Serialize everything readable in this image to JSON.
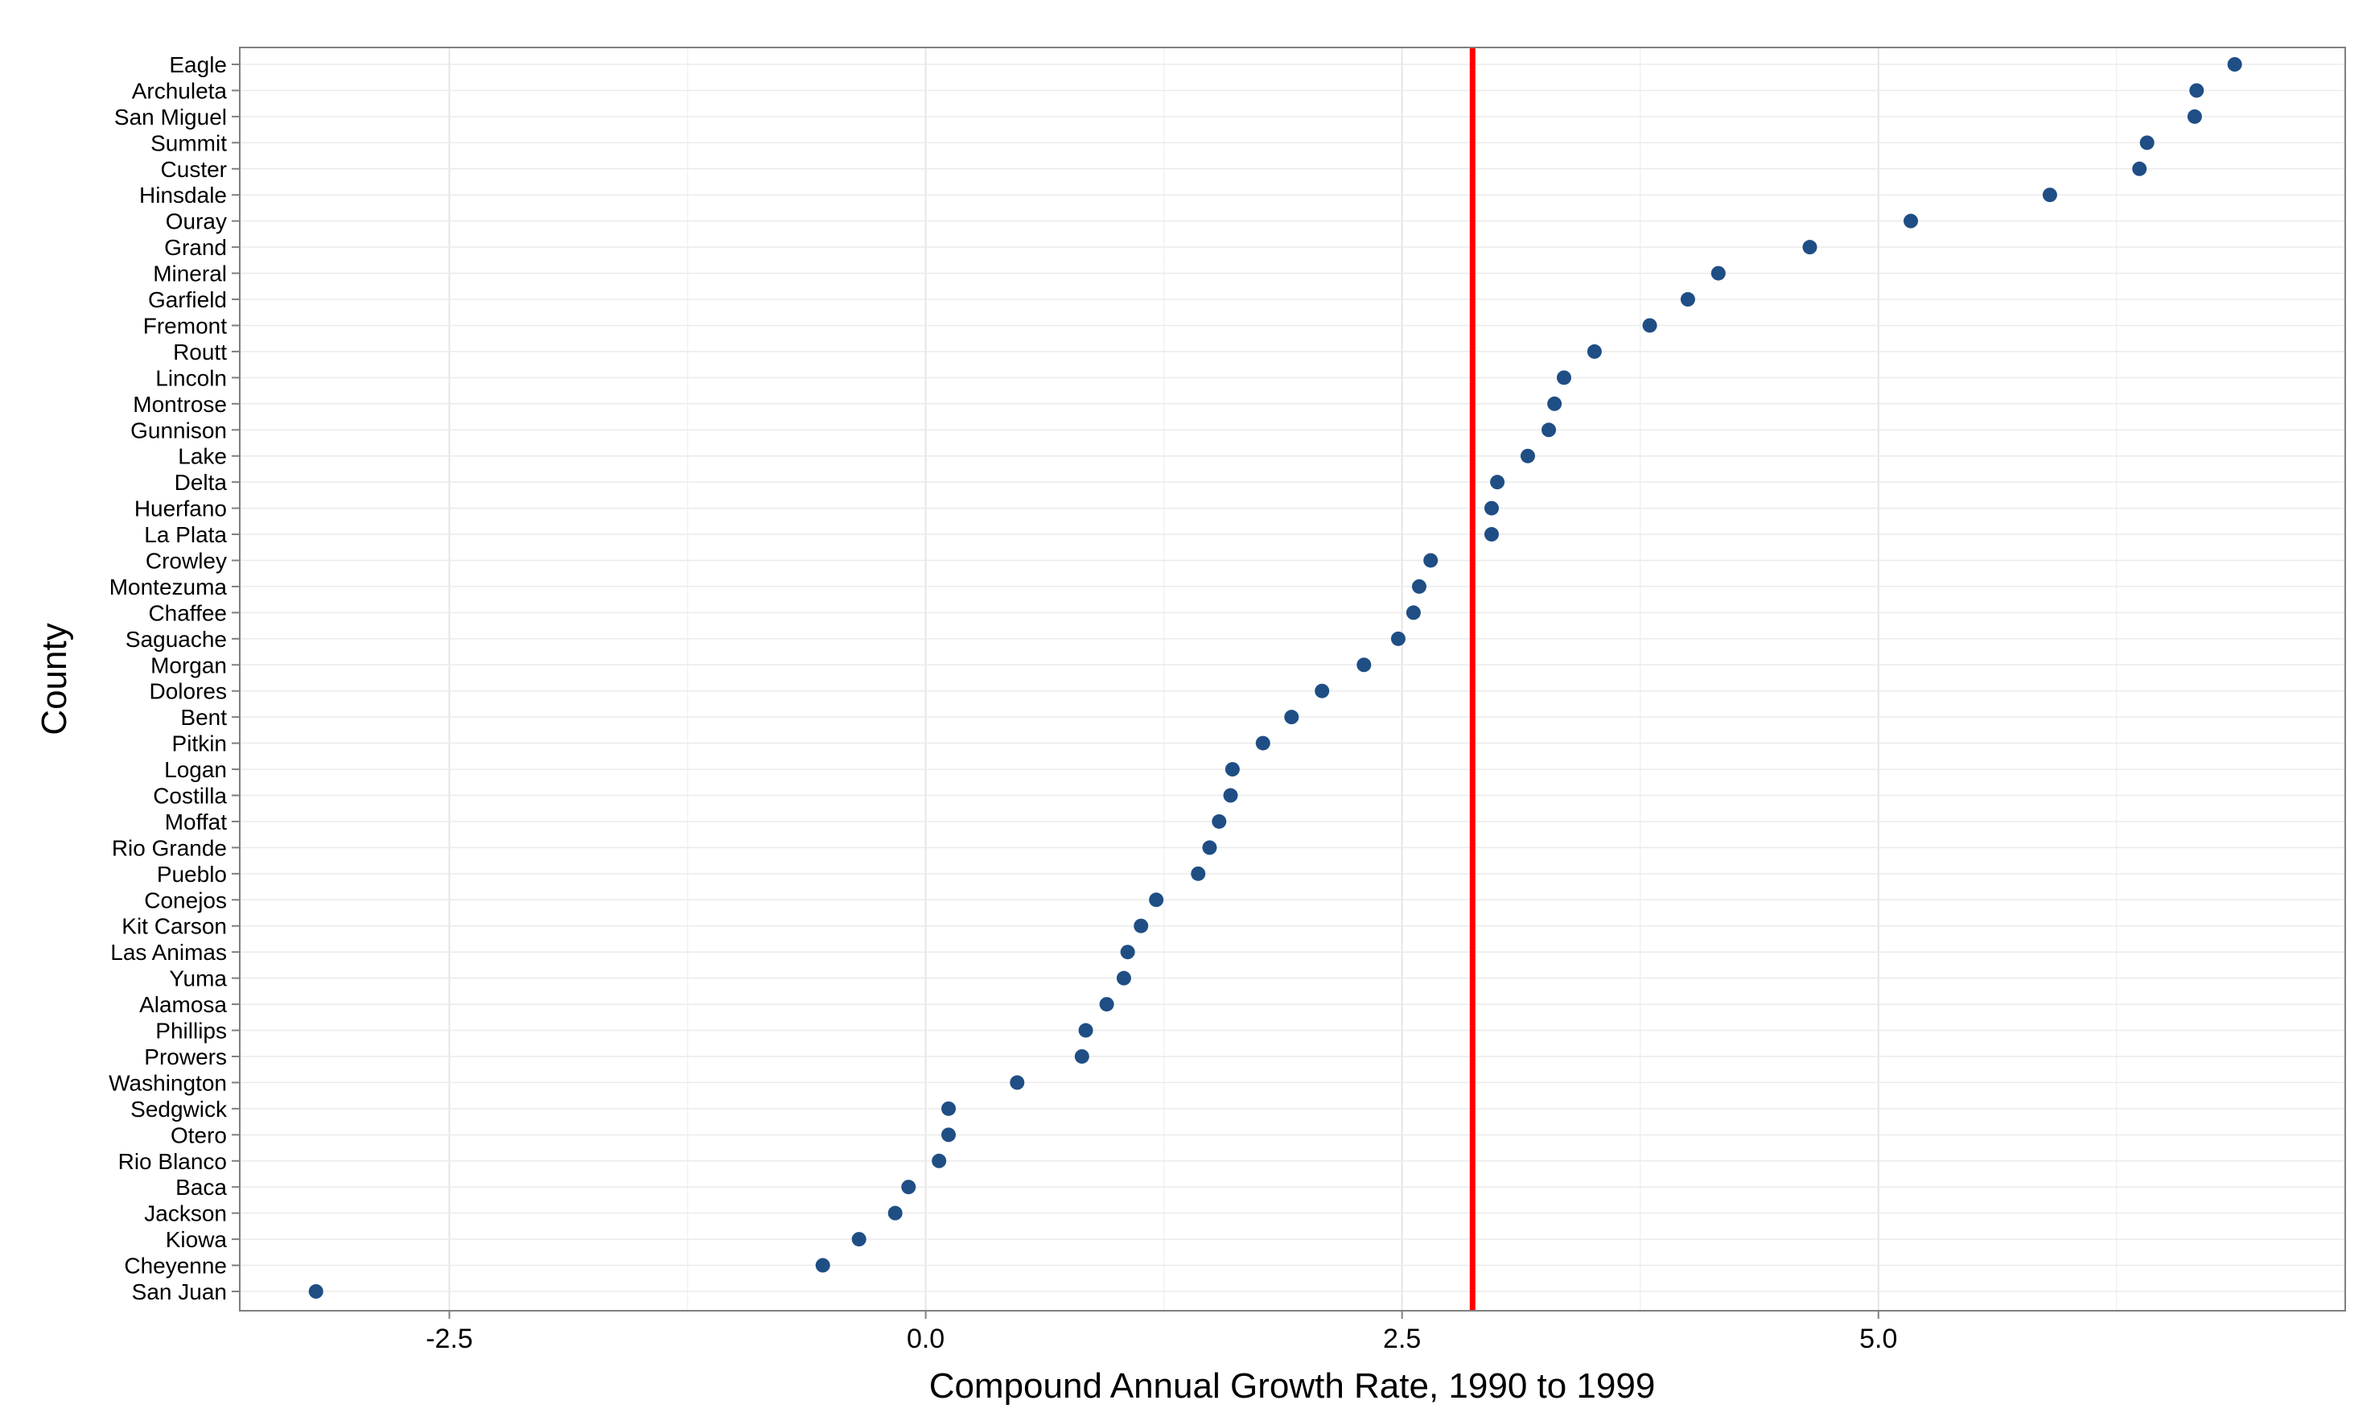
{
  "chart_data": {
    "type": "scatter",
    "title": "",
    "xlabel": "Compound Annual Growth Rate, 1990 to 1999",
    "ylabel": "County",
    "xlim": [
      -3.6,
      7.45
    ],
    "xticks": [
      -2.5,
      0.0,
      2.5,
      5.0
    ],
    "xtick_labels": [
      "-2.5",
      "0.0",
      "2.5",
      "5.0"
    ],
    "grid": true,
    "reference_line": {
      "x": 2.87,
      "color": "#ff0000"
    },
    "point_color": "#1f4e85",
    "categories": [
      "Eagle",
      "Archuleta",
      "San Miguel",
      "Summit",
      "Custer",
      "Hinsdale",
      "Ouray",
      "Grand",
      "Mineral",
      "Garfield",
      "Fremont",
      "Routt",
      "Lincoln",
      "Montrose",
      "Gunnison",
      "Lake",
      "Delta",
      "Huerfano",
      "La Plata",
      "Crowley",
      "Montezuma",
      "Chaffee",
      "Saguache",
      "Morgan",
      "Dolores",
      "Bent",
      "Pitkin",
      "Logan",
      "Costilla",
      "Moffat",
      "Rio Grande",
      "Pueblo",
      "Conejos",
      "Kit Carson",
      "Las Animas",
      "Yuma",
      "Alamosa",
      "Phillips",
      "Prowers",
      "Washington",
      "Sedgwick",
      "Otero",
      "Rio Blanco",
      "Baca",
      "Jackson",
      "Kiowa",
      "Cheyenne",
      "San Juan"
    ],
    "values": [
      6.87,
      6.67,
      6.66,
      6.41,
      6.37,
      5.9,
      5.17,
      4.64,
      4.16,
      4.0,
      3.8,
      3.51,
      3.35,
      3.3,
      3.27,
      3.16,
      3.0,
      2.97,
      2.97,
      2.65,
      2.59,
      2.56,
      2.48,
      2.3,
      2.08,
      1.92,
      1.77,
      1.61,
      1.6,
      1.54,
      1.49,
      1.43,
      1.21,
      1.13,
      1.06,
      1.04,
      0.95,
      0.84,
      0.82,
      0.48,
      0.12,
      0.12,
      0.07,
      -0.09,
      -0.16,
      -0.35,
      -0.54,
      -3.2
    ]
  }
}
